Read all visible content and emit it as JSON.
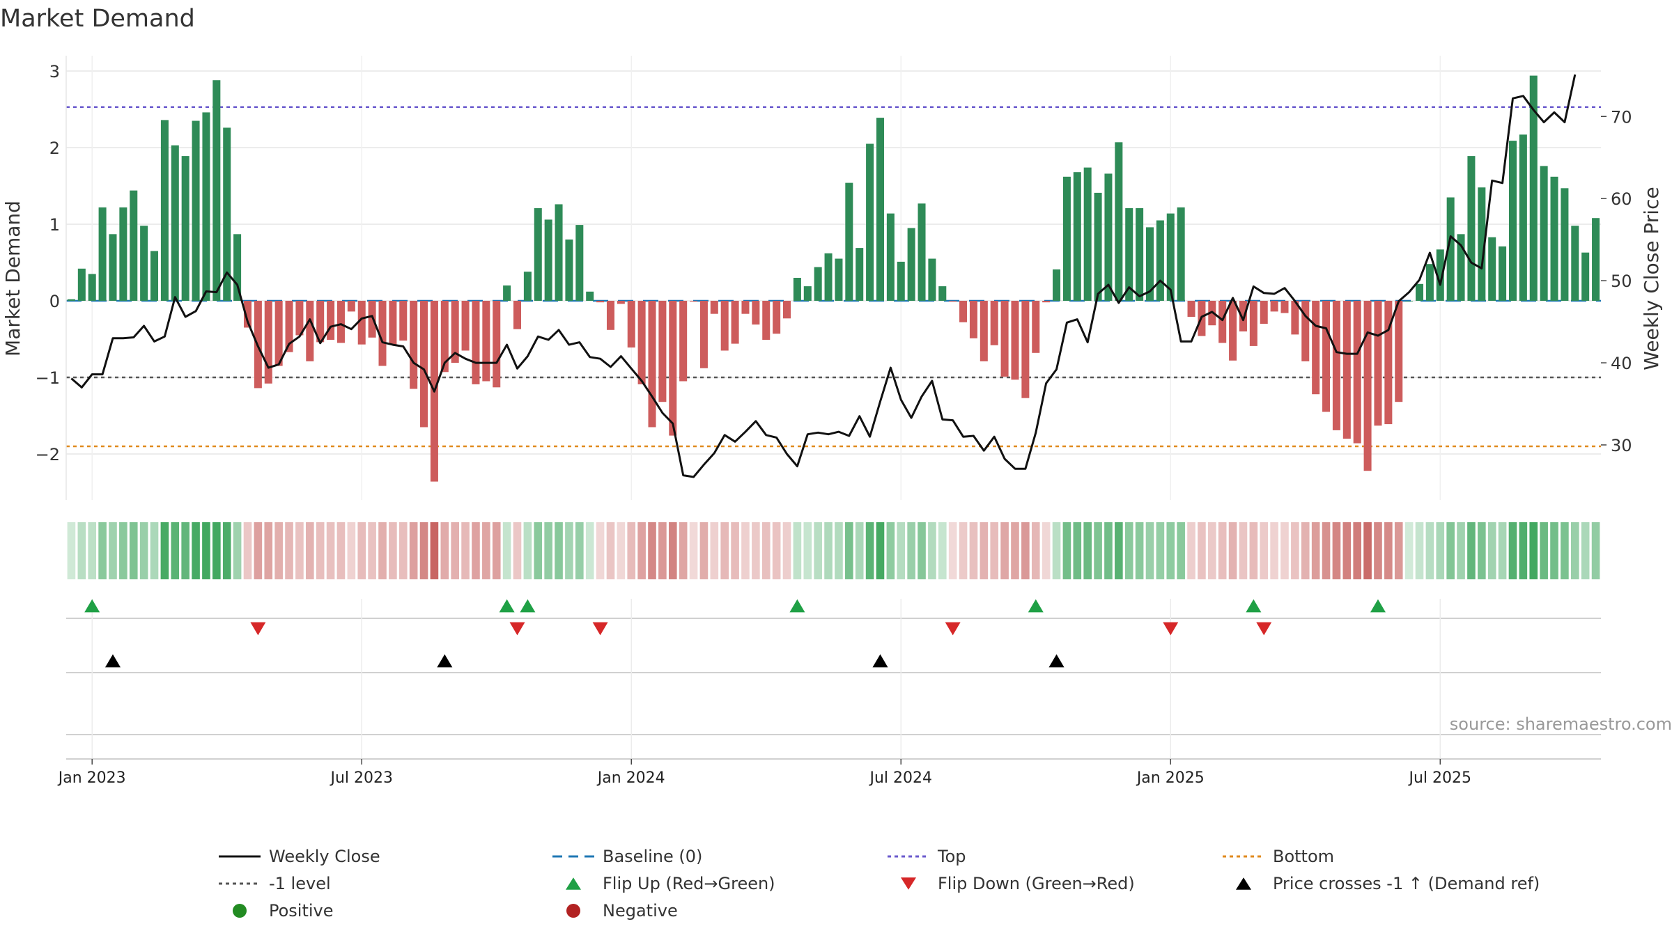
{
  "title": "Market Demand",
  "source": "source: sharemaestro.com",
  "colors": {
    "positive": "#2e8b57",
    "negative": "#cd5c5c",
    "price": "#111111",
    "baseline": "#1f77b4",
    "top": "#6a5acd",
    "bottom": "#e08a1e",
    "neg_level": "#555555",
    "flip_up": "#1fa045",
    "flip_down": "#d62728",
    "cross": "#000000",
    "heat_pos": "#2e9e4f",
    "heat_neg": "#c0504d",
    "grid": "#e6e6e6"
  },
  "chart_data": {
    "type": "bar+line",
    "title": "Market Demand",
    "ylabel_left": "Market Demand",
    "ylabel_right": "Weekly Close Price",
    "y_left_range": [
      -2.6,
      3.2
    ],
    "y_left_ticks": [
      3,
      2,
      1,
      0,
      -1,
      -2
    ],
    "y_left_tick_labels": [
      "3",
      "2",
      "1",
      "0",
      "−1",
      "−2"
    ],
    "y_right_range": [
      23.3,
      77.4
    ],
    "y_right_ticks": [
      70,
      60,
      50,
      40,
      30
    ],
    "y_right_tick_labels": [
      "70",
      "60",
      "50",
      "40",
      "30"
    ],
    "x_ticks": [
      {
        "week": 2,
        "label": "Jan 2023"
      },
      {
        "week": 28,
        "label": "Jul 2023"
      },
      {
        "week": 54,
        "label": "Jan 2024"
      },
      {
        "week": 80,
        "label": "Jul 2024"
      },
      {
        "week": 106,
        "label": "Jan 2025"
      },
      {
        "week": 132,
        "label": "Jul 2025"
      }
    ],
    "weeks_start": "2022-12-26",
    "weekly_interval_days": 7,
    "demand": [
      0.02,
      0.42,
      0.35,
      1.22,
      0.87,
      1.22,
      1.44,
      0.98,
      0.65,
      2.36,
      2.03,
      1.89,
      2.35,
      2.46,
      2.88,
      2.26,
      0.87,
      -0.35,
      -1.14,
      -1.08,
      -0.85,
      -0.67,
      -0.45,
      -0.79,
      -0.54,
      -0.51,
      -0.55,
      -0.14,
      -0.57,
      -0.48,
      -0.85,
      -0.57,
      -0.52,
      -1.15,
      -1.65,
      -2.36,
      -0.93,
      -0.81,
      -0.65,
      -1.09,
      -1.05,
      -1.13,
      0.2,
      -0.37,
      0.38,
      1.21,
      1.06,
      1.26,
      0.8,
      0.99,
      0.12,
      -0.02,
      -0.38,
      -0.04,
      -0.61,
      -1.09,
      -1.65,
      -1.32,
      -1.76,
      -1.05,
      -0.01,
      -0.88,
      -0.17,
      -0.65,
      -0.56,
      -0.17,
      -0.31,
      -0.51,
      -0.43,
      -0.23,
      0.3,
      0.19,
      0.44,
      0.62,
      0.55,
      1.54,
      0.69,
      2.05,
      2.39,
      1.14,
      0.51,
      0.95,
      1.27,
      0.55,
      0.19,
      -0.01,
      -0.28,
      -0.49,
      -0.79,
      -0.58,
      -0.99,
      -1.03,
      -1.27,
      -0.68,
      -0.02,
      0.41,
      1.62,
      1.68,
      1.74,
      1.41,
      1.66,
      2.07,
      1.21,
      1.21,
      0.96,
      1.05,
      1.14,
      1.22,
      -0.21,
      -0.46,
      -0.32,
      -0.55,
      -0.78,
      -0.4,
      -0.59,
      -0.3,
      -0.14,
      -0.16,
      -0.44,
      -0.79,
      -1.22,
      -1.45,
      -1.69,
      -1.8,
      -1.86,
      -2.22,
      -1.63,
      -1.61,
      -1.32,
      0.0,
      0.22,
      0.48,
      0.67,
      1.35,
      0.87,
      1.89,
      1.48,
      0.83,
      0.71,
      2.09,
      2.17,
      2.94,
      1.76,
      1.62,
      1.47,
      0.98,
      0.63,
      1.08
    ],
    "close": [
      38.1,
      37.0,
      38.6,
      38.6,
      43.0,
      43.0,
      43.1,
      44.5,
      42.6,
      43.2,
      48.0,
      45.6,
      46.3,
      48.7,
      48.6,
      51.0,
      49.5,
      45.0,
      42.0,
      39.4,
      39.8,
      42.3,
      43.2,
      45.3,
      42.4,
      44.4,
      44.7,
      44.1,
      45.4,
      45.7,
      42.5,
      42.2,
      42.0,
      40.0,
      39.2,
      36.5,
      40.0,
      41.2,
      40.5,
      40.0,
      40.0,
      40.0,
      42.2,
      39.3,
      40.8,
      43.2,
      42.8,
      44.0,
      42.2,
      42.5,
      40.7,
      40.5,
      39.5,
      40.8,
      39.3,
      37.8,
      35.9,
      33.9,
      32.6,
      26.3,
      26.1,
      27.6,
      29.0,
      31.2,
      30.4,
      31.6,
      32.9,
      31.2,
      30.9,
      28.9,
      27.4,
      31.3,
      31.5,
      31.3,
      31.6,
      31.1,
      33.5,
      31.0,
      35.3,
      39.4,
      35.5,
      33.3,
      35.9,
      37.8,
      33.1,
      33.0,
      31.0,
      31.1,
      29.3,
      31.0,
      28.3,
      27.1,
      27.1,
      31.5,
      37.5,
      39.2,
      44.9,
      45.3,
      42.5,
      48.4,
      49.5,
      47.3,
      49.2,
      48.1,
      48.7,
      50.0,
      48.9,
      42.6,
      42.6,
      45.6,
      46.2,
      45.2,
      47.9,
      45.2,
      49.3,
      48.5,
      48.4,
      49.1,
      47.5,
      45.7,
      44.5,
      44.2,
      41.3,
      41.1,
      41.1,
      43.7,
      43.3,
      44.0,
      47.5,
      48.6,
      50.1,
      53.4,
      49.5,
      55.4,
      54.3,
      52.2,
      51.5,
      62.2,
      61.9,
      72.2,
      72.5,
      70.8,
      69.3,
      70.5,
      69.3,
      75.1
    ],
    "levels": [
      {
        "name": "Top",
        "value": 2.53,
        "style": "dotted"
      },
      {
        "name": "-1 level",
        "value": -1.0,
        "style": "dotted"
      },
      {
        "name": "Bottom",
        "value": -1.9,
        "style": "dotted"
      },
      {
        "name": "Baseline (0)",
        "value": 0,
        "style": "dashed"
      }
    ],
    "flip_up_weeks": [
      2,
      42,
      44,
      70,
      93,
      114,
      126
    ],
    "flip_down_weeks": [
      18,
      43,
      51,
      85,
      106,
      115
    ],
    "price_cross_weeks": [
      4,
      36,
      78,
      95
    ]
  },
  "legend": [
    {
      "label": "Weekly Close",
      "marker": "line-solid"
    },
    {
      "label": "Baseline (0)",
      "marker": "line-dashed"
    },
    {
      "label": "Top",
      "marker": "line-dotted-top"
    },
    {
      "label": "Bottom",
      "marker": "line-dotted-bottom"
    },
    {
      "label": "-1 level",
      "marker": "line-dotted-level"
    },
    {
      "label": "Flip Up (Red→Green)",
      "marker": "triangle-up-green"
    },
    {
      "label": "Flip Down (Green→Red)",
      "marker": "triangle-down-red"
    },
    {
      "label": "Price crosses -1 ↑ (Demand ref)",
      "marker": "triangle-up-black"
    },
    {
      "label": "Positive",
      "marker": "dot-green"
    },
    {
      "label": "Negative",
      "marker": "dot-red"
    }
  ]
}
